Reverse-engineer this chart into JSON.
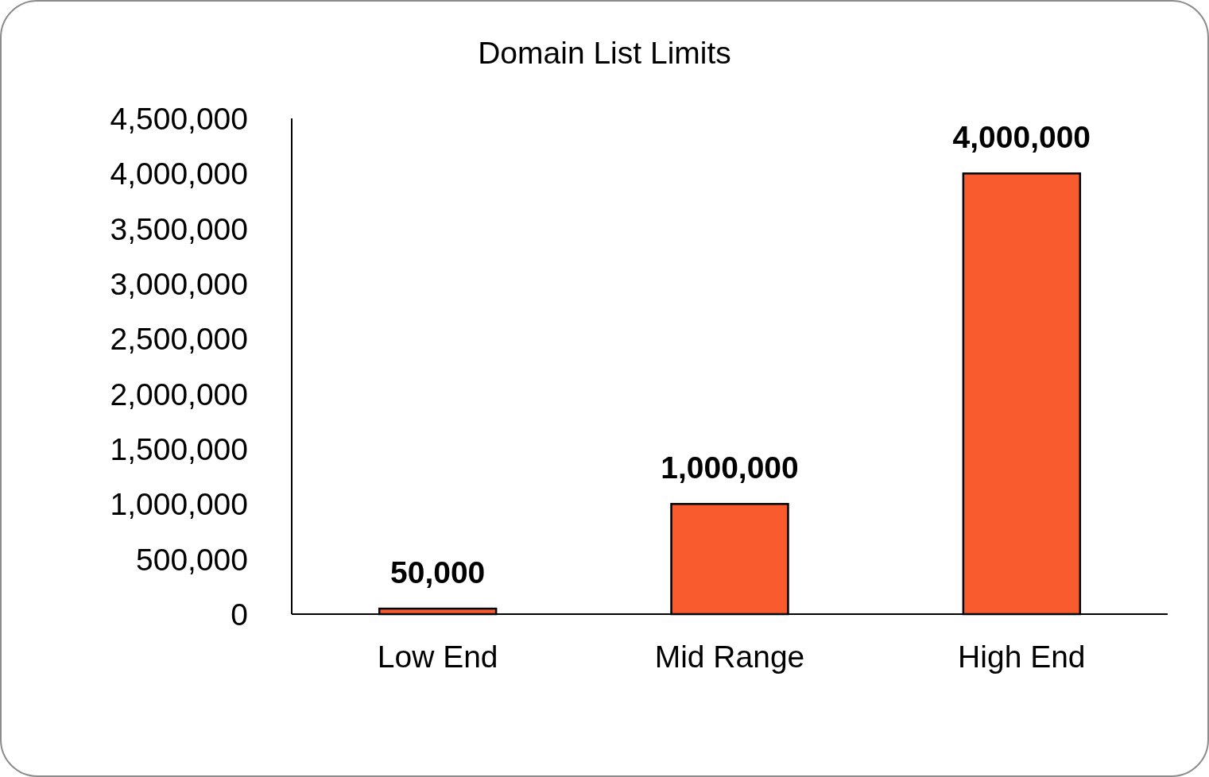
{
  "chart_data": {
    "type": "bar",
    "title": "Domain List Limits",
    "categories": [
      "Low End",
      "Mid Range",
      "High End"
    ],
    "series": [
      {
        "color": "#f95b2f",
        "values": [
          50000,
          1000000,
          4000000
        ],
        "value_labels": [
          "50,000",
          "1,000,000",
          "4,000,000"
        ]
      }
    ],
    "ylim": [
      0,
      4500000
    ],
    "yticks": [
      {
        "value": 0,
        "label": "0"
      },
      {
        "value": 500000,
        "label": "500,000"
      },
      {
        "value": 1000000,
        "label": "1,000,000"
      },
      {
        "value": 1500000,
        "label": "1,500,000"
      },
      {
        "value": 2000000,
        "label": "2,000,000"
      },
      {
        "value": 2500000,
        "label": "2,500,000"
      },
      {
        "value": 3000000,
        "label": "3,000,000"
      },
      {
        "value": 3500000,
        "label": "3,500,000"
      },
      {
        "value": 4000000,
        "label": "4,000,000"
      },
      {
        "value": 4500000,
        "label": "4,500,000"
      }
    ],
    "grid": false
  }
}
